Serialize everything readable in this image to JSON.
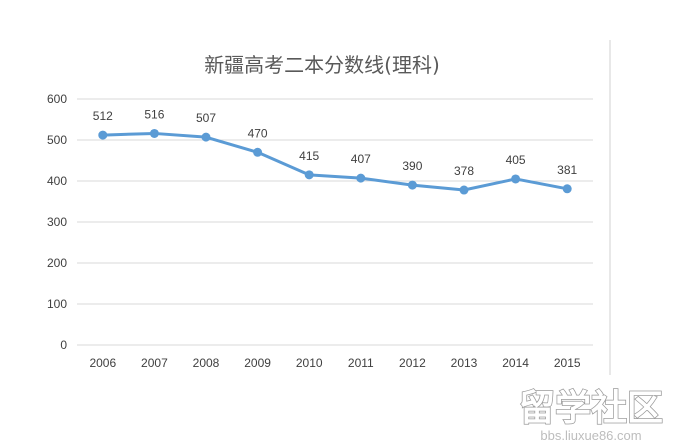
{
  "chart_data": {
    "type": "line",
    "title": "新疆高考二本分数线(理科)",
    "xlabel": "",
    "ylabel": "",
    "categories": [
      "2006",
      "2007",
      "2008",
      "2009",
      "2010",
      "2011",
      "2012",
      "2013",
      "2014",
      "2015"
    ],
    "series": [
      {
        "values": [
          512,
          516,
          507,
          470,
          415,
          407,
          390,
          378,
          405,
          381
        ]
      }
    ],
    "ylim": [
      0,
      600
    ],
    "yticks": [
      0,
      100,
      200,
      300,
      400,
      500,
      600
    ],
    "grid": true,
    "legend": "none",
    "data_labels": true,
    "line_color": "#5b9bd5"
  },
  "watermark": {
    "logo_text": "留学社区",
    "url_text": "bbs.liuxue86.com"
  }
}
